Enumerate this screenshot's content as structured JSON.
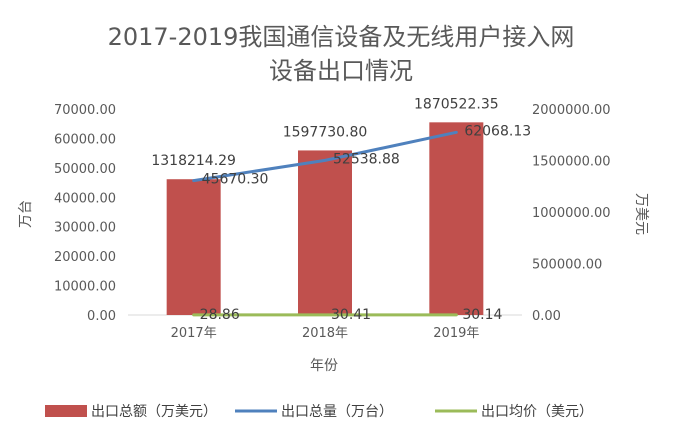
{
  "chart_data": {
    "type": "bar",
    "title": "2017-2019我国通信设备及无线用户接入网设备出口情况",
    "title_lines": [
      "2017-2019我国通信设备及无线用户接入网",
      "设备出口情况"
    ],
    "categories": [
      "2017年",
      "2018年",
      "2019年"
    ],
    "xlabel": "年份",
    "ylabel_left": "万台",
    "ylabel_right": "万美元",
    "ylim_left": [
      0,
      70000
    ],
    "ylim_right": [
      0,
      2000000
    ],
    "yticks_left": [
      "0.00",
      "10000.00",
      "20000.00",
      "30000.00",
      "40000.00",
      "50000.00",
      "60000.00",
      "70000.00"
    ],
    "yticks_right": [
      "0.00",
      "500000.00",
      "1000000.00",
      "1500000.00",
      "2000000.00"
    ],
    "grid": false,
    "legend_position": "bottom",
    "series": [
      {
        "name": "出口总额（万美元）",
        "type": "bar",
        "axis": "right",
        "color": "#c0504d",
        "values": [
          1318214.29,
          1597730.8,
          1870522.35
        ],
        "labels": [
          "1318214.29",
          "1597730.80",
          "1870522.35"
        ]
      },
      {
        "name": "出口总量（万台）",
        "type": "line",
        "axis": "left",
        "color": "#4f81bd",
        "values": [
          45670.3,
          52538.88,
          62068.13
        ],
        "labels": [
          "45670.30",
          "52538.88",
          "62068.13"
        ]
      },
      {
        "name": "出口均价（美元）",
        "type": "line",
        "axis": "left",
        "color": "#9bbb59",
        "values": [
          28.86,
          30.41,
          30.14
        ],
        "labels": [
          "28.86",
          "30.41",
          "30.14"
        ]
      }
    ]
  }
}
